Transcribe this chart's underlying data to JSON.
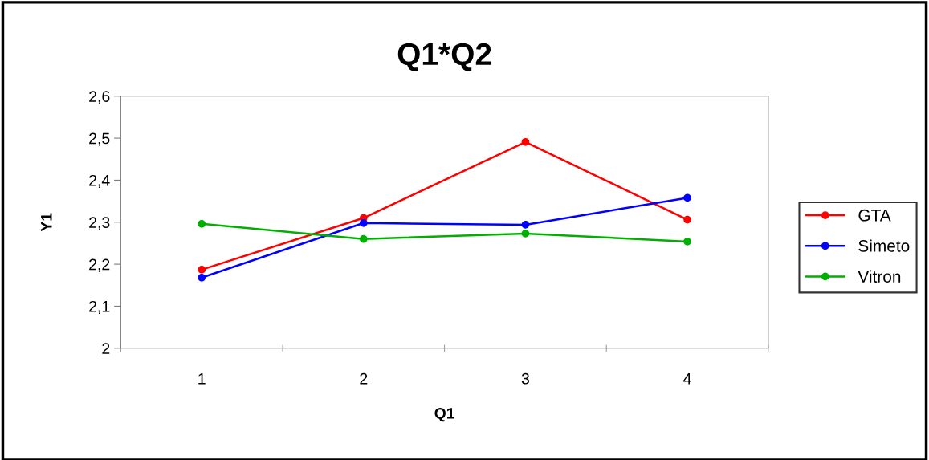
{
  "chart_data": {
    "type": "line",
    "title": "Q1*Q2",
    "xlabel": "Q1",
    "ylabel": "Y1",
    "categories": [
      "1",
      "2",
      "3",
      "4"
    ],
    "series": [
      {
        "name": "GTA",
        "color": "#ff0000",
        "values": [
          2.187,
          2.31,
          2.491,
          2.306
        ]
      },
      {
        "name": "Simeto",
        "color": "#0000ff",
        "values": [
          2.168,
          2.298,
          2.294,
          2.358
        ]
      },
      {
        "name": "Vitron",
        "color": "#00b000",
        "values": [
          2.296,
          2.26,
          2.273,
          2.254
        ]
      }
    ],
    "ylim": [
      2,
      2.6
    ],
    "yticks": [
      2,
      {
        "value": 2.1,
        "label": "2,1"
      },
      {
        "value": 2.2,
        "label": "2,2"
      },
      {
        "value": 2.3,
        "label": "2,3"
      },
      {
        "value": 2.4,
        "label": "2,4"
      },
      {
        "value": 2.5,
        "label": "2,5"
      },
      {
        "value": 2.6,
        "label": "2,6"
      }
    ],
    "grid": false,
    "legend": "right",
    "marker": "circle",
    "line_style": "solid"
  }
}
